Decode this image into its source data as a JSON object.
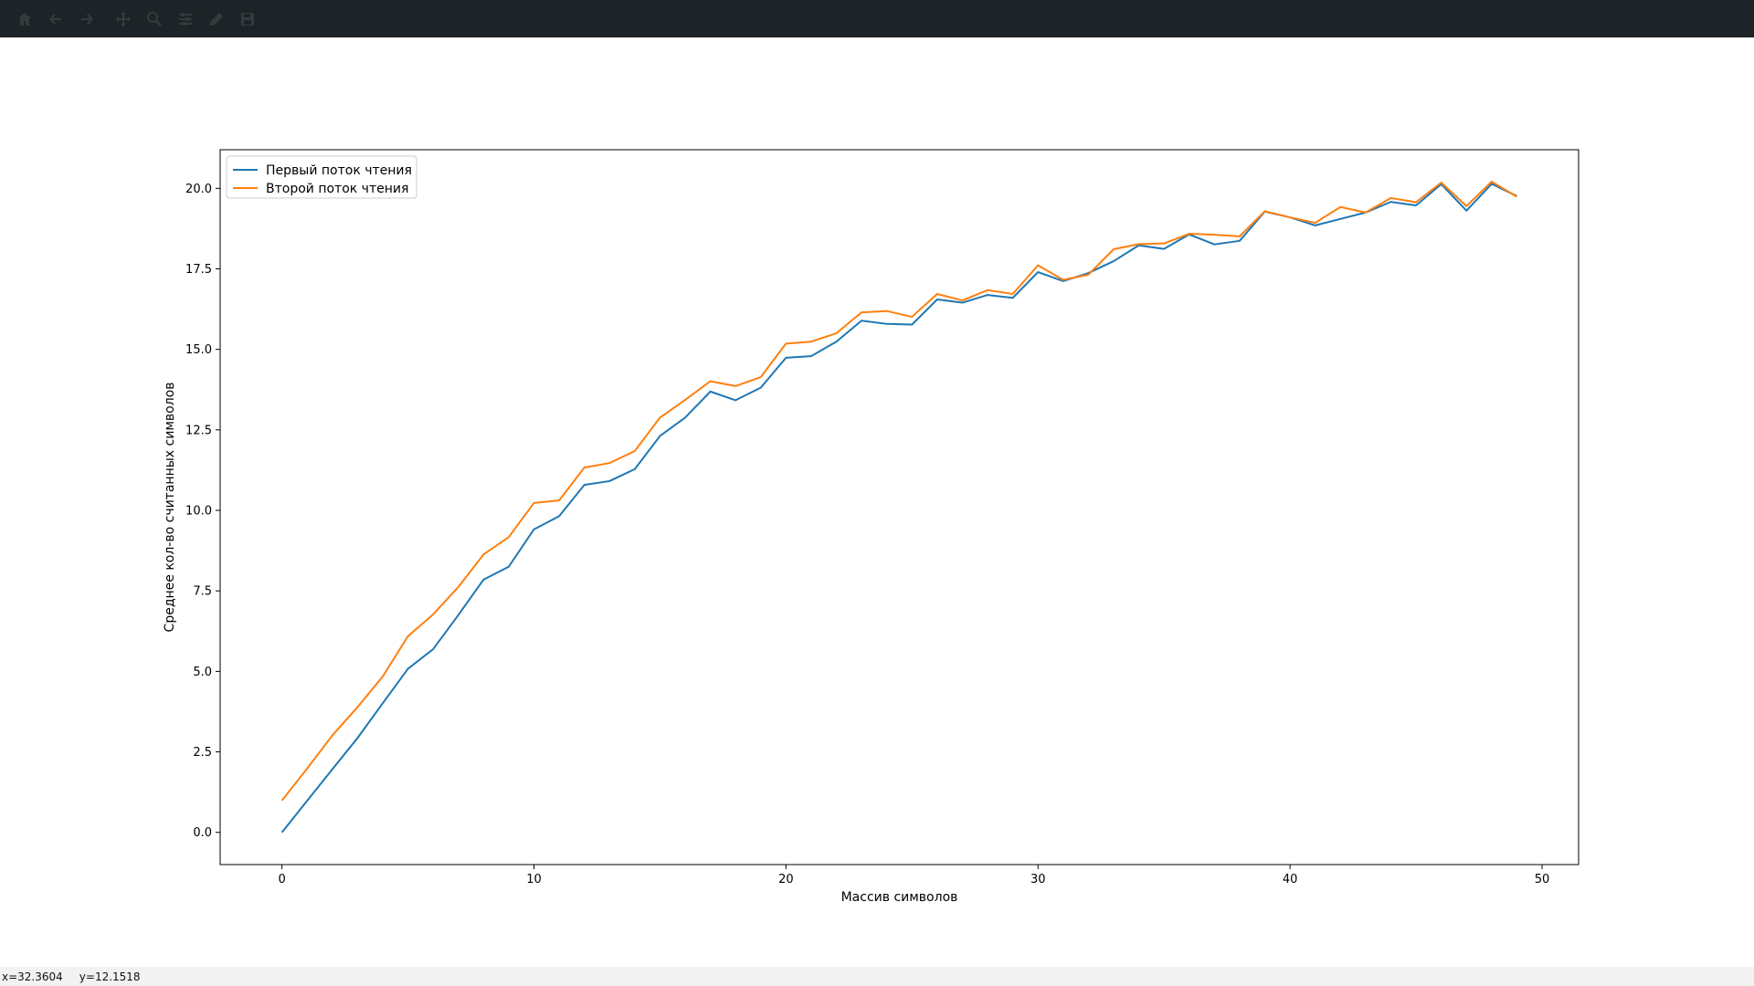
{
  "toolbar": {
    "icons": [
      "home-icon",
      "back-arrow-icon",
      "forward-arrow-icon",
      "move-icon",
      "zoom-icon",
      "configure-subplots-icon",
      "edit-axis-icon",
      "save-icon"
    ]
  },
  "status": {
    "x_readout": "x=32.3604",
    "y_readout": "y=12.1518"
  },
  "colors": {
    "series1": "#1f77b4",
    "series2": "#ff7f0e",
    "toolbar_bg": "#1d2326"
  },
  "chart_data": {
    "type": "line",
    "title": "",
    "xlabel": "Массив символов",
    "ylabel": "Среднее кол-во считанных символов",
    "xlim": [
      -2.45,
      51.45
    ],
    "ylim": [
      -1.0,
      21.2
    ],
    "xticks": [
      0,
      10,
      20,
      30,
      40,
      50
    ],
    "yticks": [
      0.0,
      2.5,
      5.0,
      7.5,
      10.0,
      12.5,
      15.0,
      17.5,
      20.0
    ],
    "ytick_labels": [
      "0.0",
      "2.5",
      "5.0",
      "7.5",
      "10.0",
      "12.5",
      "15.0",
      "17.5",
      "20.0"
    ],
    "legend": "upper-left",
    "grid": false,
    "x": [
      0,
      1,
      2,
      3,
      4,
      5,
      6,
      7,
      8,
      9,
      10,
      11,
      12,
      13,
      14,
      15,
      16,
      17,
      18,
      19,
      20,
      21,
      22,
      23,
      24,
      25,
      26,
      27,
      28,
      29,
      30,
      31,
      32,
      33,
      34,
      35,
      36,
      37,
      38,
      39,
      40,
      41,
      42,
      43,
      44,
      45,
      46,
      47,
      48,
      49
    ],
    "series": [
      {
        "name": "Первый поток чтения",
        "values": [
          0.0,
          0.98,
          1.96,
          2.93,
          4.01,
          5.08,
          5.69,
          6.75,
          7.85,
          8.25,
          9.41,
          9.82,
          10.79,
          10.91,
          11.28,
          12.31,
          12.88,
          13.69,
          13.42,
          13.81,
          14.74,
          14.79,
          15.24,
          15.89,
          15.79,
          15.77,
          16.55,
          16.45,
          16.69,
          16.6,
          17.4,
          17.12,
          17.37,
          17.74,
          18.23,
          18.12,
          18.57,
          18.26,
          18.37,
          19.28,
          19.1,
          18.85,
          19.05,
          19.25,
          19.58,
          19.47,
          20.13,
          19.31,
          20.14,
          19.76
        ]
      },
      {
        "name": "Второй поток чтения",
        "values": [
          0.99,
          1.98,
          3.01,
          3.89,
          4.84,
          6.09,
          6.77,
          7.62,
          8.63,
          9.17,
          10.23,
          10.31,
          11.33,
          11.47,
          11.84,
          12.88,
          13.43,
          14.01,
          13.86,
          14.14,
          15.18,
          15.24,
          15.5,
          16.15,
          16.19,
          16.01,
          16.72,
          16.52,
          16.84,
          16.72,
          17.61,
          17.16,
          17.32,
          18.11,
          18.27,
          18.29,
          18.59,
          18.56,
          18.51,
          19.29,
          19.1,
          18.93,
          19.42,
          19.25,
          19.7,
          19.57,
          20.18,
          19.45,
          20.21,
          19.74
        ]
      }
    ]
  }
}
